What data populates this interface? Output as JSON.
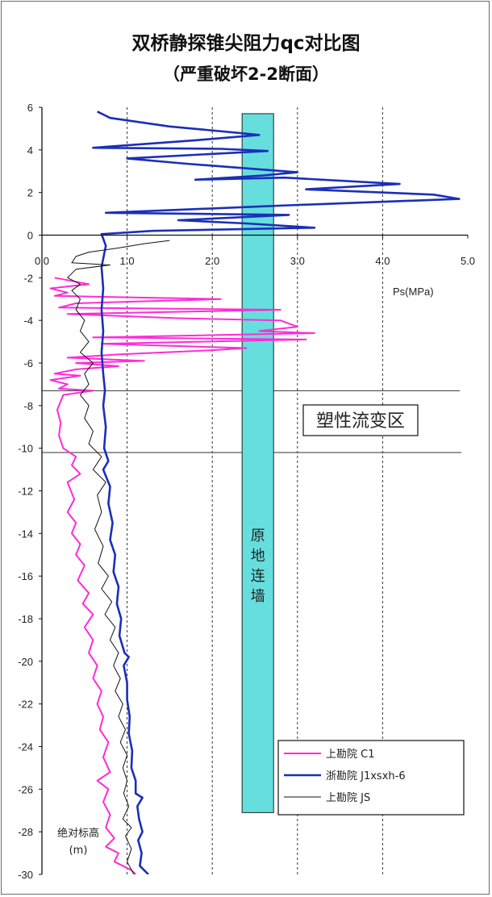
{
  "chart_data": {
    "type": "line",
    "title": "双桥静探锥尖阻力qc对比图",
    "subtitle": "（严重破坏2-2断面）",
    "xlabel": "Ps(MPa)",
    "ylabel": "绝对标高\n(m)",
    "xlim": [
      0,
      5
    ],
    "ylim": [
      -30,
      6
    ],
    "x_ticks": [
      "0.0",
      "1.0",
      "2.0",
      "3.0",
      "4.0",
      "5.0"
    ],
    "y_ticks": [
      "6",
      "4",
      "2",
      "0",
      "-2",
      "-4",
      "-6",
      "-8",
      "-10",
      "-12",
      "-14",
      "-16",
      "-18",
      "-20",
      "-22",
      "-24",
      "-26",
      "-28",
      "-30"
    ],
    "x_grid_dashed": [
      1,
      2,
      3,
      4
    ],
    "zone": {
      "label": "塑性流变区",
      "top": -7.3,
      "bottom": -10.2
    },
    "wall": {
      "label": "原地连墙",
      "x_from": 2.35,
      "x_to": 2.72,
      "top": 5.7,
      "bottom": -27.1,
      "color": "#66dede"
    },
    "legend": {
      "position": "bottom-right",
      "entries": [
        {
          "label": "上勘院 C1",
          "color": "#ff2bd6"
        },
        {
          "label": "浙勘院 J1xsxh-6",
          "color": "#1b2fb8"
        },
        {
          "label": "上勘院 JS",
          "color": "#111111"
        }
      ]
    },
    "series": [
      {
        "name": "上勘院 C1",
        "color": "#ff2bd6",
        "width": 2,
        "points": [
          [
            0.15,
            -2.0
          ],
          [
            0.55,
            -2.3
          ],
          [
            0.1,
            -2.5
          ],
          [
            0.3,
            -2.7
          ],
          [
            0.15,
            -2.85
          ],
          [
            2.1,
            -3.0
          ],
          [
            0.4,
            -3.2
          ],
          [
            0.2,
            -3.4
          ],
          [
            2.8,
            -3.5
          ],
          [
            0.3,
            -3.7
          ],
          [
            1.6,
            -3.9
          ],
          [
            2.8,
            -4.0
          ],
          [
            3.0,
            -4.3
          ],
          [
            2.55,
            -4.5
          ],
          [
            3.2,
            -4.6
          ],
          [
            0.6,
            -4.8
          ],
          [
            3.1,
            -4.9
          ],
          [
            0.7,
            -5.1
          ],
          [
            2.4,
            -5.3
          ],
          [
            2.0,
            -5.4
          ],
          [
            0.9,
            -5.6
          ],
          [
            0.3,
            -5.75
          ],
          [
            1.2,
            -5.9
          ],
          [
            0.4,
            -6.0
          ],
          [
            0.9,
            -6.15
          ],
          [
            0.4,
            -6.3
          ],
          [
            0.15,
            -6.5
          ],
          [
            0.45,
            -6.6
          ],
          [
            0.1,
            -6.8
          ],
          [
            0.3,
            -7.0
          ],
          [
            0.2,
            -7.2
          ],
          [
            0.6,
            -7.3
          ],
          [
            0.25,
            -7.5
          ],
          [
            0.18,
            -8.2
          ],
          [
            0.22,
            -8.8
          ],
          [
            0.2,
            -9.4
          ],
          [
            0.25,
            -10.0
          ],
          [
            0.4,
            -10.4
          ],
          [
            0.35,
            -10.8
          ],
          [
            0.45,
            -11.2
          ],
          [
            0.3,
            -11.6
          ],
          [
            0.38,
            -12.4
          ],
          [
            0.3,
            -13.0
          ],
          [
            0.4,
            -13.5
          ],
          [
            0.35,
            -14.0
          ],
          [
            0.45,
            -14.5
          ],
          [
            0.4,
            -15.0
          ],
          [
            0.5,
            -15.5
          ],
          [
            0.42,
            -16.2
          ],
          [
            0.55,
            -16.8
          ],
          [
            0.48,
            -17.3
          ],
          [
            0.6,
            -17.8
          ],
          [
            0.5,
            -18.4
          ],
          [
            0.6,
            -19.0
          ],
          [
            0.55,
            -19.6
          ],
          [
            0.65,
            -20.2
          ],
          [
            0.6,
            -20.8
          ],
          [
            0.7,
            -21.4
          ],
          [
            0.65,
            -22.0
          ],
          [
            0.72,
            -22.6
          ],
          [
            0.68,
            -23.2
          ],
          [
            0.78,
            -23.8
          ],
          [
            0.72,
            -24.5
          ],
          [
            0.8,
            -25.2
          ],
          [
            0.65,
            -25.6
          ],
          [
            0.78,
            -26.0
          ],
          [
            0.72,
            -26.6
          ],
          [
            0.8,
            -27.2
          ],
          [
            0.75,
            -27.8
          ],
          [
            0.85,
            -28.3
          ],
          [
            0.75,
            -28.7
          ],
          [
            0.9,
            -29.0
          ],
          [
            0.85,
            -29.4
          ],
          [
            1.05,
            -29.8
          ],
          [
            1.1,
            -30.0
          ]
        ]
      },
      {
        "name": "浙勘院 J1xsxh-6",
        "color": "#1b2fb8",
        "width": 2.6,
        "points": [
          [
            0.65,
            5.8
          ],
          [
            0.8,
            5.5
          ],
          [
            1.5,
            5.1
          ],
          [
            2.3,
            4.8
          ],
          [
            2.55,
            4.7
          ],
          [
            1.8,
            4.45
          ],
          [
            0.6,
            4.1
          ],
          [
            2.1,
            4.05
          ],
          [
            2.65,
            3.95
          ],
          [
            1.0,
            3.6
          ],
          [
            1.7,
            3.35
          ],
          [
            3.0,
            2.95
          ],
          [
            2.6,
            2.8
          ],
          [
            1.8,
            2.6
          ],
          [
            2.85,
            2.7
          ],
          [
            4.2,
            2.4
          ],
          [
            3.1,
            2.15
          ],
          [
            4.6,
            1.9
          ],
          [
            4.9,
            1.7
          ],
          [
            2.9,
            1.4
          ],
          [
            0.75,
            1.05
          ],
          [
            2.9,
            0.95
          ],
          [
            1.6,
            0.7
          ],
          [
            2.4,
            0.55
          ],
          [
            3.2,
            0.35
          ],
          [
            1.3,
            0.2
          ],
          [
            0.7,
            0.05
          ],
          [
            0.75,
            -0.5
          ],
          [
            0.7,
            -1.5
          ],
          [
            0.72,
            -2.5
          ],
          [
            0.7,
            -3.5
          ],
          [
            0.72,
            -4.5
          ],
          [
            0.7,
            -5.5
          ],
          [
            0.72,
            -6.5
          ],
          [
            0.74,
            -7.3
          ],
          [
            0.72,
            -8.0
          ],
          [
            0.75,
            -9.0
          ],
          [
            0.73,
            -10.0
          ],
          [
            0.78,
            -10.6
          ],
          [
            0.72,
            -11.0
          ],
          [
            0.8,
            -11.8
          ],
          [
            0.78,
            -12.6
          ],
          [
            0.83,
            -13.5
          ],
          [
            0.8,
            -14.3
          ],
          [
            0.86,
            -15.0
          ],
          [
            0.84,
            -15.8
          ],
          [
            0.9,
            -16.5
          ],
          [
            0.88,
            -17.3
          ],
          [
            0.93,
            -18.0
          ],
          [
            0.91,
            -18.8
          ],
          [
            0.97,
            -19.6
          ],
          [
            1.02,
            -19.8
          ],
          [
            0.96,
            -20.2
          ],
          [
            1.0,
            -21.0
          ],
          [
            1.0,
            -21.8
          ],
          [
            1.03,
            -22.6
          ],
          [
            1.02,
            -23.4
          ],
          [
            1.06,
            -24.2
          ],
          [
            1.05,
            -25.0
          ],
          [
            1.1,
            -25.6
          ],
          [
            1.1,
            -26.2
          ],
          [
            1.18,
            -26.4
          ],
          [
            1.12,
            -26.8
          ],
          [
            1.14,
            -27.4
          ],
          [
            1.18,
            -28.0
          ],
          [
            1.13,
            -28.4
          ],
          [
            1.17,
            -29.0
          ],
          [
            1.15,
            -29.6
          ],
          [
            1.25,
            -30.0
          ]
        ]
      },
      {
        "name": "上勘院 JS",
        "color": "#111111",
        "width": 1,
        "points": [
          [
            1.5,
            -0.25
          ],
          [
            1.2,
            -0.4
          ],
          [
            0.9,
            -0.6
          ],
          [
            0.55,
            -0.8
          ],
          [
            0.4,
            -1.0
          ],
          [
            0.35,
            -1.3
          ],
          [
            0.8,
            -1.4
          ],
          [
            0.4,
            -1.6
          ],
          [
            0.3,
            -2.0
          ],
          [
            0.45,
            -2.3
          ],
          [
            0.35,
            -2.6
          ],
          [
            0.45,
            -3.0
          ],
          [
            0.4,
            -3.5
          ],
          [
            0.5,
            -4.0
          ],
          [
            0.45,
            -4.5
          ],
          [
            0.55,
            -5.0
          ],
          [
            0.45,
            -5.5
          ],
          [
            0.6,
            -6.0
          ],
          [
            0.5,
            -6.5
          ],
          [
            0.55,
            -7.0
          ],
          [
            0.45,
            -7.5
          ],
          [
            0.55,
            -8.0
          ],
          [
            0.5,
            -8.6
          ],
          [
            0.6,
            -9.2
          ],
          [
            0.55,
            -9.8
          ],
          [
            0.7,
            -10.4
          ],
          [
            0.6,
            -11.0
          ],
          [
            0.75,
            -11.6
          ],
          [
            0.65,
            -12.2
          ],
          [
            0.7,
            -13.0
          ],
          [
            0.62,
            -13.8
          ],
          [
            0.72,
            -14.6
          ],
          [
            0.66,
            -15.4
          ],
          [
            0.78,
            -16.0
          ],
          [
            0.7,
            -16.6
          ],
          [
            0.82,
            -17.2
          ],
          [
            0.74,
            -17.8
          ],
          [
            0.86,
            -18.4
          ],
          [
            0.8,
            -19.0
          ],
          [
            0.9,
            -19.6
          ],
          [
            0.84,
            -20.2
          ],
          [
            0.92,
            -20.8
          ],
          [
            0.86,
            -21.4
          ],
          [
            0.95,
            -22.0
          ],
          [
            0.9,
            -22.6
          ],
          [
            0.98,
            -23.2
          ],
          [
            0.92,
            -23.8
          ],
          [
            1.0,
            -24.4
          ],
          [
            0.95,
            -25.0
          ],
          [
            1.0,
            -25.6
          ],
          [
            0.96,
            -26.2
          ],
          [
            1.02,
            -26.8
          ],
          [
            0.95,
            -27.4
          ],
          [
            1.05,
            -27.8
          ],
          [
            0.98,
            -28.2
          ],
          [
            1.05,
            -28.8
          ],
          [
            1.0,
            -29.4
          ],
          [
            1.08,
            -30.0
          ]
        ]
      }
    ]
  }
}
